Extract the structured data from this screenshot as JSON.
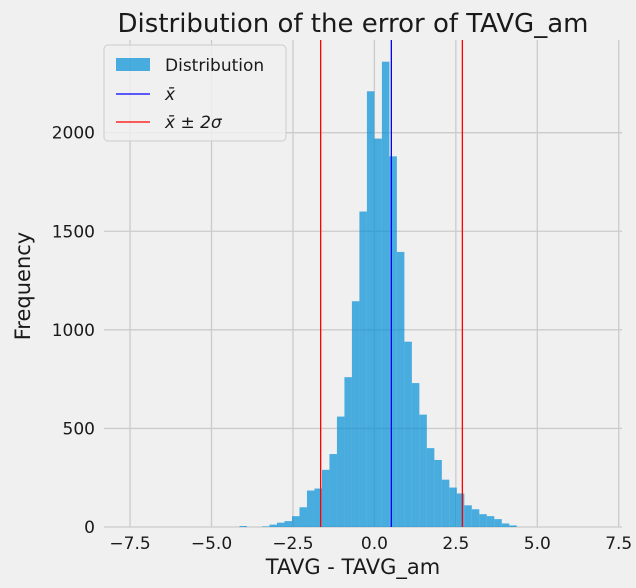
{
  "chart_data": {
    "type": "histogram",
    "title": "Distribution of the error of TAVG_am",
    "xlabel": "TAVG - TAVG_am",
    "ylabel": "Frequency",
    "xlim": [
      -8.3,
      7.6
    ],
    "ylim": [
      0,
      2470
    ],
    "xticks": [
      -7.5,
      -5.0,
      -2.5,
      0.0,
      2.5,
      5.0,
      7.5
    ],
    "xtick_labels": [
      "−7.5",
      "−5.0",
      "−2.5",
      "0.0",
      "2.5",
      "5.0",
      "7.5"
    ],
    "yticks": [
      0,
      500,
      1000,
      1500,
      2000
    ],
    "ytick_labels": [
      "0",
      "500",
      "1000",
      "1500",
      "2000"
    ],
    "grid": true,
    "legend_position": "top-left",
    "bin_width": 0.23,
    "bins": [
      {
        "x0": -4.14,
        "count": 5
      },
      {
        "x0": -3.91,
        "count": 0
      },
      {
        "x0": -3.68,
        "count": 0
      },
      {
        "x0": -3.45,
        "count": 3
      },
      {
        "x0": -3.22,
        "count": 12
      },
      {
        "x0": -2.99,
        "count": 22
      },
      {
        "x0": -2.76,
        "count": 30
      },
      {
        "x0": -2.53,
        "count": 55
      },
      {
        "x0": -2.3,
        "count": 100
      },
      {
        "x0": -2.07,
        "count": 185
      },
      {
        "x0": -1.84,
        "count": 195
      },
      {
        "x0": -1.61,
        "count": 290
      },
      {
        "x0": -1.38,
        "count": 370
      },
      {
        "x0": -1.15,
        "count": 560
      },
      {
        "x0": -0.92,
        "count": 760
      },
      {
        "x0": -0.69,
        "count": 1145
      },
      {
        "x0": -0.46,
        "count": 1600
      },
      {
        "x0": -0.23,
        "count": 2210
      },
      {
        "x0": 0.0,
        "count": 1970
      },
      {
        "x0": 0.23,
        "count": 2360
      },
      {
        "x0": 0.46,
        "count": 1880
      },
      {
        "x0": 0.69,
        "count": 1395
      },
      {
        "x0": 0.92,
        "count": 940
      },
      {
        "x0": 1.15,
        "count": 730
      },
      {
        "x0": 1.38,
        "count": 570
      },
      {
        "x0": 1.61,
        "count": 400
      },
      {
        "x0": 1.84,
        "count": 340
      },
      {
        "x0": 2.07,
        "count": 240
      },
      {
        "x0": 2.3,
        "count": 200
      },
      {
        "x0": 2.53,
        "count": 170
      },
      {
        "x0": 2.76,
        "count": 110
      },
      {
        "x0": 2.99,
        "count": 90
      },
      {
        "x0": 3.22,
        "count": 65
      },
      {
        "x0": 3.45,
        "count": 55
      },
      {
        "x0": 3.68,
        "count": 40
      },
      {
        "x0": 3.91,
        "count": 18
      },
      {
        "x0": 4.14,
        "count": 8
      }
    ],
    "lines": [
      {
        "name": "x̄",
        "x": 0.52,
        "color": "#0000ff"
      },
      {
        "name": "x̄ ± 2σ",
        "x": -1.65,
        "color": "#ff0000"
      },
      {
        "name": "x̄ ± 2σ",
        "x": 2.7,
        "color": "#ff0000"
      }
    ],
    "legend": [
      {
        "label": "Distribution",
        "kind": "patch",
        "color": "#008fd5"
      },
      {
        "label": "x̄",
        "kind": "line",
        "color": "#0000ff"
      },
      {
        "label": "x̄ ± 2σ",
        "kind": "line",
        "color": "#ff0000"
      }
    ],
    "colors": {
      "bars": "#008fd5",
      "background": "#f0f0f0",
      "grid": "#cbcbcb"
    }
  }
}
